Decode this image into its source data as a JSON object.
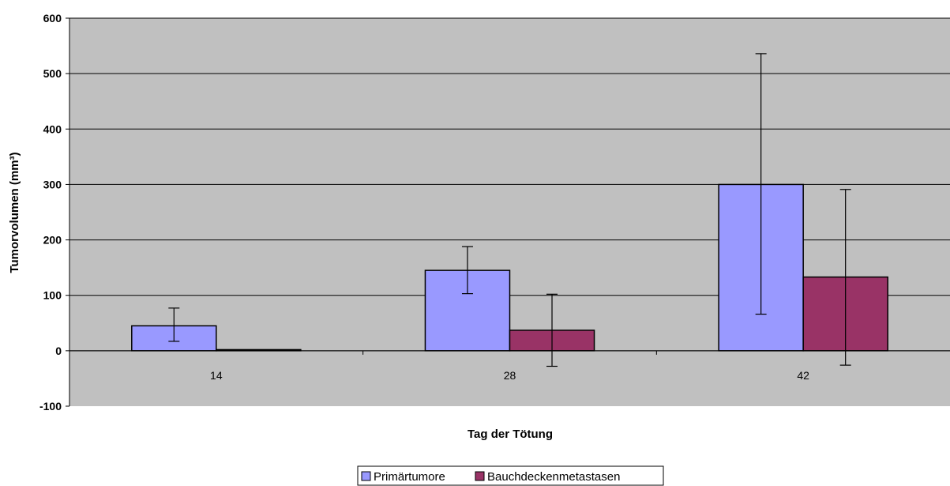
{
  "chart_data": {
    "type": "bar",
    "title": "",
    "xlabel": "Tag der Tötung",
    "ylabel": "Tumorvolumen (mm³)",
    "categories": [
      "14",
      "28",
      "42"
    ],
    "ylim": [
      -100,
      600
    ],
    "yticks": [
      -100,
      0,
      100,
      200,
      300,
      400,
      500,
      600
    ],
    "ytick_labels": [
      "-100",
      "0",
      "100",
      "200",
      "300",
      "400",
      "500",
      "600"
    ],
    "grid": true,
    "legend_position": "bottom-center",
    "plot_background": "#c0c0c0",
    "series": [
      {
        "name": "Primärtumore",
        "color": "#9999ff",
        "values": [
          45,
          145,
          300
        ],
        "error_low": [
          17,
          103,
          66
        ],
        "error_high": [
          77,
          188,
          536
        ]
      },
      {
        "name": "Bauchdeckenmetastasen",
        "color": "#993366",
        "values": [
          2,
          37,
          133
        ],
        "error_low": [
          null,
          -28,
          -26
        ],
        "error_high": [
          null,
          102,
          291
        ]
      }
    ]
  }
}
